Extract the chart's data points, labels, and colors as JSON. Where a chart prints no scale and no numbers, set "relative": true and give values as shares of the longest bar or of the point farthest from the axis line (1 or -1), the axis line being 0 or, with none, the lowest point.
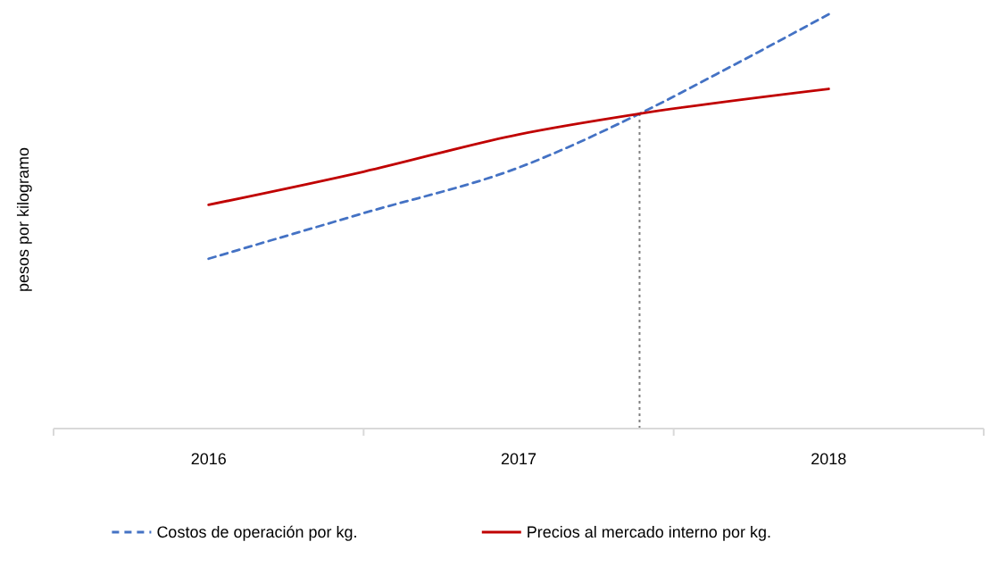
{
  "chart_data": {
    "type": "line",
    "ylabel": "pesos por kilogramo",
    "relative": true,
    "xlim": [
      2015.5,
      2018.5
    ],
    "xticks": [
      {
        "value": 2015.5,
        "label": null
      },
      2016,
      {
        "value": 2016.5,
        "label": null
      },
      2017,
      {
        "value": 2017.5,
        "label": null
      },
      2018,
      {
        "value": 2018.5,
        "label": null
      }
    ],
    "series": [
      {
        "name": "Costos de operación por kg.",
        "color": "#4472c4",
        "line_style": "dashed",
        "x": [
          2016,
          2016.5,
          2017,
          2017.39,
          2017.7,
          2018
        ],
        "values": [
          0.41,
          0.52,
          0.63,
          0.76,
          0.88,
          1
        ]
      },
      {
        "name": "Precios al mercado interno por kg.",
        "color": "#c00000",
        "line_style": "solid",
        "x": [
          2016,
          2016.5,
          2017,
          2017.39,
          2018
        ],
        "values": [
          0.54,
          0.62,
          0.71,
          0.76,
          0.82
        ]
      }
    ],
    "ref_lines": [
      {
        "axis": "x",
        "value": 2017.39,
        "color": "#808080",
        "line_style": "dotted"
      }
    ],
    "legend": "bottom"
  }
}
